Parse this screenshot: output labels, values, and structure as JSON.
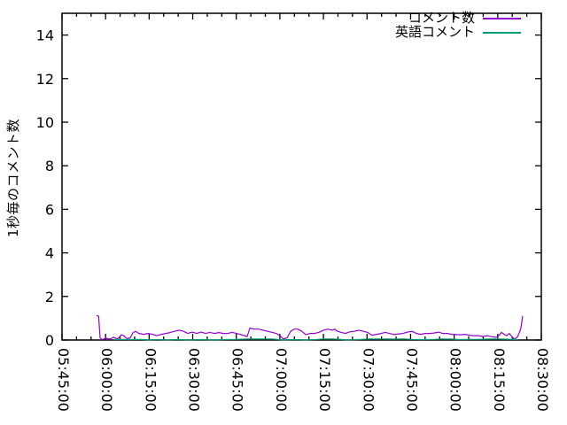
{
  "chart_data": {
    "type": "line",
    "title": "",
    "xlabel": "",
    "ylabel": "1秒毎のコメント数",
    "ylim": [
      0,
      15
    ],
    "yticks": [
      0,
      2,
      4,
      6,
      8,
      10,
      12,
      14
    ],
    "grid": "off",
    "legend_position": "top-right-inside",
    "x_axis": {
      "type": "time",
      "range_minutes": [
        0,
        165
      ],
      "tick_interval_minutes": 15,
      "minor_tick_interval_minutes": 5,
      "tick_labels": [
        "05:45:00",
        "06:00:00",
        "06:15:00",
        "06:30:00",
        "06:45:00",
        "07:00:00",
        "07:15:00",
        "07:30:00",
        "07:45:00",
        "08:00:00",
        "08:15:00",
        "08:30:00"
      ],
      "tick_label_rotation_deg": 90
    },
    "axis_color": "#000000",
    "background_color": "#ffffff",
    "series": [
      {
        "key": "comments",
        "name": "コメント数",
        "color": "#9400d3",
        "points_format": "[minutes_after_05:45:00, comments_per_second]",
        "points": [
          [
            11.9,
            1.12
          ],
          [
            12.6,
            1.1
          ],
          [
            13.1,
            0.1
          ],
          [
            13.8,
            0.02
          ],
          [
            15.2,
            0.08
          ],
          [
            16.5,
            0.04
          ],
          [
            17.7,
            0.12
          ],
          [
            19.2,
            0.05
          ],
          [
            20.4,
            0.24
          ],
          [
            21.3,
            0.2
          ],
          [
            22.3,
            0.06
          ],
          [
            23.5,
            0.1
          ],
          [
            24.4,
            0.33
          ],
          [
            25.3,
            0.4
          ],
          [
            26.5,
            0.3
          ],
          [
            28.1,
            0.26
          ],
          [
            29.6,
            0.3
          ],
          [
            31.1,
            0.26
          ],
          [
            32.6,
            0.2
          ],
          [
            34.2,
            0.26
          ],
          [
            35.7,
            0.3
          ],
          [
            37.2,
            0.34
          ],
          [
            38.7,
            0.4
          ],
          [
            40.3,
            0.45
          ],
          [
            41.8,
            0.4
          ],
          [
            43.3,
            0.3
          ],
          [
            44.8,
            0.36
          ],
          [
            46.4,
            0.3
          ],
          [
            47.9,
            0.36
          ],
          [
            49.4,
            0.3
          ],
          [
            50.9,
            0.35
          ],
          [
            52.5,
            0.3
          ],
          [
            54.0,
            0.34
          ],
          [
            55.5,
            0.3
          ],
          [
            57.0,
            0.3
          ],
          [
            58.6,
            0.35
          ],
          [
            60.1,
            0.3
          ],
          [
            61.6,
            0.25
          ],
          [
            62.8,
            0.2
          ],
          [
            63.7,
            0.15
          ],
          [
            64.7,
            0.55
          ],
          [
            66.2,
            0.5
          ],
          [
            67.7,
            0.5
          ],
          [
            69.2,
            0.45
          ],
          [
            70.8,
            0.4
          ],
          [
            72.3,
            0.35
          ],
          [
            73.8,
            0.3
          ],
          [
            75.0,
            0.2
          ],
          [
            76.2,
            0.05
          ],
          [
            77.5,
            0.1
          ],
          [
            78.7,
            0.4
          ],
          [
            79.9,
            0.5
          ],
          [
            81.1,
            0.5
          ],
          [
            82.6,
            0.4
          ],
          [
            83.9,
            0.25
          ],
          [
            85.4,
            0.3
          ],
          [
            86.9,
            0.3
          ],
          [
            88.4,
            0.35
          ],
          [
            90.0,
            0.45
          ],
          [
            91.5,
            0.5
          ],
          [
            93.0,
            0.45
          ],
          [
            93.9,
            0.5
          ],
          [
            94.5,
            0.42
          ],
          [
            96.1,
            0.35
          ],
          [
            97.6,
            0.3
          ],
          [
            99.1,
            0.38
          ],
          [
            100.6,
            0.4
          ],
          [
            102.2,
            0.45
          ],
          [
            103.7,
            0.4
          ],
          [
            105.2,
            0.35
          ],
          [
            106.7,
            0.22
          ],
          [
            108.3,
            0.26
          ],
          [
            109.8,
            0.3
          ],
          [
            111.3,
            0.35
          ],
          [
            112.8,
            0.3
          ],
          [
            114.4,
            0.25
          ],
          [
            115.9,
            0.28
          ],
          [
            117.4,
            0.3
          ],
          [
            118.9,
            0.36
          ],
          [
            120.5,
            0.4
          ],
          [
            122.0,
            0.3
          ],
          [
            123.5,
            0.26
          ],
          [
            125.0,
            0.3
          ],
          [
            126.6,
            0.3
          ],
          [
            128.1,
            0.32
          ],
          [
            129.6,
            0.36
          ],
          [
            131.1,
            0.3
          ],
          [
            132.7,
            0.3
          ],
          [
            134.2,
            0.26
          ],
          [
            135.7,
            0.25
          ],
          [
            137.2,
            0.24
          ],
          [
            138.8,
            0.26
          ],
          [
            140.3,
            0.22
          ],
          [
            141.8,
            0.2
          ],
          [
            143.3,
            0.2
          ],
          [
            144.9,
            0.16
          ],
          [
            146.4,
            0.2
          ],
          [
            147.9,
            0.15
          ],
          [
            149.4,
            0.12
          ],
          [
            150.4,
            0.2
          ],
          [
            151.3,
            0.35
          ],
          [
            152.2,
            0.26
          ],
          [
            153.1,
            0.2
          ],
          [
            154.0,
            0.3
          ],
          [
            154.9,
            0.15
          ],
          [
            155.8,
            0.05
          ],
          [
            156.7,
            0.12
          ],
          [
            157.3,
            0.3
          ],
          [
            157.9,
            0.5
          ],
          [
            158.6,
            1.1
          ]
        ]
      },
      {
        "key": "english-comments",
        "name": "英語コメント",
        "color": "#009e73",
        "points_format": "[minutes_after_05:45:00, comments_per_second]",
        "points": [
          [
            17.7,
            0.02
          ],
          [
            20,
            0.03
          ],
          [
            23,
            0.02
          ],
          [
            26,
            0.03
          ],
          [
            28,
            0.02
          ],
          [
            30,
            0
          ],
          [
            33,
            0.02
          ],
          [
            36,
            0
          ],
          [
            40,
            0.02
          ],
          [
            44,
            0
          ],
          [
            48,
            0.02
          ],
          [
            52,
            0
          ],
          [
            56,
            0.02
          ],
          [
            60,
            0.03
          ],
          [
            64,
            0.05
          ],
          [
            68,
            0.05
          ],
          [
            72,
            0.05
          ],
          [
            74,
            0.03
          ],
          [
            76,
            0
          ],
          [
            80,
            0.02
          ],
          [
            84,
            0
          ],
          [
            88,
            0.03
          ],
          [
            90,
            0.05
          ],
          [
            93,
            0.05
          ],
          [
            96,
            0.03
          ],
          [
            98,
            0
          ],
          [
            102,
            0.02
          ],
          [
            106,
            0.05
          ],
          [
            110,
            0.05
          ],
          [
            114,
            0.04
          ],
          [
            118,
            0.05
          ],
          [
            120,
            0.03
          ],
          [
            124,
            0.02
          ],
          [
            128,
            0.03
          ],
          [
            131,
            0.05
          ],
          [
            134,
            0.04
          ],
          [
            137,
            0.02
          ],
          [
            140,
            0.03
          ],
          [
            143,
            0.03
          ],
          [
            146,
            0.04
          ],
          [
            149,
            0.05
          ],
          [
            152,
            0.04
          ],
          [
            155,
            0.03
          ],
          [
            157,
            0.02
          ]
        ]
      }
    ]
  }
}
